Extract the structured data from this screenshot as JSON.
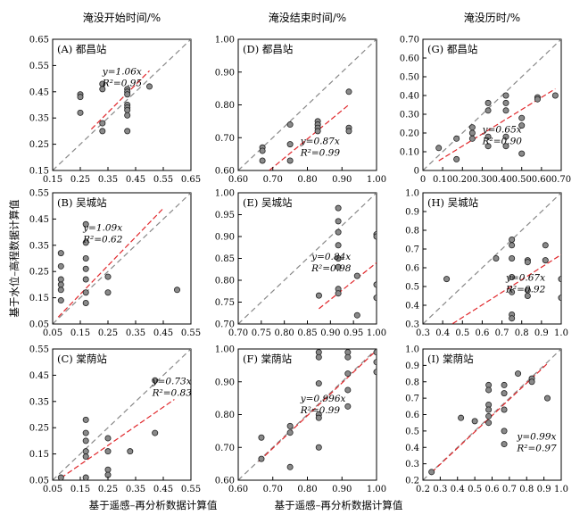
{
  "column_titles": [
    "淹没开始时间/%",
    "淹没结束时间/%",
    "淹没历时/%"
  ],
  "xlabel": "基于遥感–再分析数据计算值",
  "ylabel": "基于水位–高程数据计算值",
  "chart_data": [
    {
      "type": "scatter",
      "panel": "(A) 都昌站",
      "eq": "y=1.06x",
      "r2": "R²=0.95",
      "slope": 1.06,
      "xlim": [
        0.15,
        0.65
      ],
      "ylim": [
        0.15,
        0.65
      ],
      "xticks": [
        "0.15",
        "0.25",
        "0.35",
        "0.45",
        "0.55",
        "0.65"
      ],
      "yticks": [
        "0.15",
        "0.25",
        "0.35",
        "0.45",
        "0.55",
        "0.65"
      ],
      "points": [
        [
          0.25,
          0.44
        ],
        [
          0.25,
          0.43
        ],
        [
          0.25,
          0.37
        ],
        [
          0.33,
          0.48
        ],
        [
          0.33,
          0.46
        ],
        [
          0.33,
          0.33
        ],
        [
          0.33,
          0.3
        ],
        [
          0.42,
          0.46
        ],
        [
          0.42,
          0.45
        ],
        [
          0.42,
          0.44
        ],
        [
          0.42,
          0.4
        ],
        [
          0.42,
          0.39
        ],
        [
          0.42,
          0.38
        ],
        [
          0.42,
          0.36
        ],
        [
          0.42,
          0.3
        ],
        [
          0.5,
          0.47
        ]
      ],
      "fit_x": [
        0.29,
        0.5
      ]
    },
    {
      "type": "scatter",
      "panel": "(D) 都昌站",
      "eq": "y=0.87x",
      "r2": "R²=0.99",
      "slope": 0.87,
      "xlim": [
        0.6,
        1.0
      ],
      "ylim": [
        0.6,
        1.0
      ],
      "xticks": [
        "0.60",
        "0.70",
        "0.80",
        "0.90",
        "1.00"
      ],
      "yticks": [
        "0.60",
        "0.70",
        "0.80",
        "0.90",
        "1.00"
      ],
      "points": [
        [
          0.67,
          0.67
        ],
        [
          0.67,
          0.66
        ],
        [
          0.67,
          0.63
        ],
        [
          0.75,
          0.74
        ],
        [
          0.75,
          0.68
        ],
        [
          0.75,
          0.63
        ],
        [
          0.83,
          0.75
        ],
        [
          0.83,
          0.74
        ],
        [
          0.83,
          0.73
        ],
        [
          0.83,
          0.72
        ],
        [
          0.92,
          0.84
        ],
        [
          0.92,
          0.73
        ],
        [
          0.92,
          0.72
        ]
      ],
      "fit_x": [
        0.69,
        0.92
      ]
    },
    {
      "type": "scatter",
      "panel": "(G) 都昌站",
      "eq": "y=0.65x",
      "r2": "R²=0.90",
      "slope": 0.65,
      "xlim": [
        0.0,
        0.7
      ],
      "ylim": [
        0.0,
        0.7
      ],
      "xticks": [
        "0",
        "0.10",
        "0.20",
        "0.30",
        "0.40",
        "0.50",
        "0.60",
        "0.70"
      ],
      "yticks": [
        "0",
        "0.10",
        "0.20",
        "0.30",
        "0.40",
        "0.50",
        "0.60",
        "0.70"
      ],
      "points": [
        [
          0.08,
          0.12
        ],
        [
          0.17,
          0.17
        ],
        [
          0.17,
          0.06
        ],
        [
          0.25,
          0.23
        ],
        [
          0.25,
          0.2
        ],
        [
          0.25,
          0.17
        ],
        [
          0.33,
          0.36
        ],
        [
          0.33,
          0.32
        ],
        [
          0.33,
          0.18
        ],
        [
          0.33,
          0.13
        ],
        [
          0.42,
          0.4
        ],
        [
          0.42,
          0.36
        ],
        [
          0.42,
          0.32
        ],
        [
          0.42,
          0.18
        ],
        [
          0.42,
          0.13
        ],
        [
          0.5,
          0.28
        ],
        [
          0.5,
          0.24
        ],
        [
          0.5,
          0.09
        ],
        [
          0.58,
          0.39
        ],
        [
          0.58,
          0.38
        ],
        [
          0.67,
          0.4
        ]
      ],
      "fit_x": [
        0.08,
        0.67
      ]
    },
    {
      "type": "scatter",
      "panel": "(B) 吴城站",
      "eq": "y=1.09x",
      "r2": "R²=0.62",
      "slope": 1.09,
      "xlim": [
        0.05,
        0.55
      ],
      "ylim": [
        0.05,
        0.55
      ],
      "xticks": [
        "0.05",
        "0.15",
        "0.25",
        "0.35",
        "0.45",
        "0.55"
      ],
      "yticks": [
        "0.05",
        "0.15",
        "0.25",
        "0.35",
        "0.45",
        "0.55"
      ],
      "points": [
        [
          0.08,
          0.32
        ],
        [
          0.08,
          0.27
        ],
        [
          0.08,
          0.22
        ],
        [
          0.08,
          0.2
        ],
        [
          0.08,
          0.18
        ],
        [
          0.08,
          0.14
        ],
        [
          0.17,
          0.43
        ],
        [
          0.17,
          0.36
        ],
        [
          0.17,
          0.3
        ],
        [
          0.17,
          0.26
        ],
        [
          0.17,
          0.22
        ],
        [
          0.17,
          0.17
        ],
        [
          0.17,
          0.13
        ],
        [
          0.25,
          0.23
        ],
        [
          0.25,
          0.17
        ],
        [
          0.5,
          0.18
        ]
      ],
      "fit_x": [
        0.07,
        0.45
      ]
    },
    {
      "type": "scatter",
      "panel": "(E) 吴城站",
      "eq": "y=0.84x",
      "r2": "R²=0.98",
      "slope": 0.84,
      "xlim": [
        0.7,
        1.0
      ],
      "ylim": [
        0.7,
        1.0
      ],
      "xticks": [
        "0.70",
        "0.75",
        "0.80",
        "0.85",
        "0.90",
        "0.95",
        "1.00"
      ],
      "yticks": [
        "0.70",
        "0.75",
        "0.80",
        "0.85",
        "0.90",
        "0.95",
        "1.00"
      ],
      "points": [
        [
          0.875,
          0.765
        ],
        [
          0.917,
          0.965
        ],
        [
          0.917,
          0.935
        ],
        [
          0.917,
          0.91
        ],
        [
          0.917,
          0.88
        ],
        [
          0.917,
          0.85
        ],
        [
          0.917,
          0.83
        ],
        [
          0.917,
          0.78
        ],
        [
          0.917,
          0.77
        ],
        [
          0.958,
          0.81
        ],
        [
          0.958,
          0.72
        ],
        [
          1.0,
          0.905
        ],
        [
          1.0,
          0.9
        ],
        [
          1.0,
          0.79
        ],
        [
          1.0,
          0.76
        ]
      ],
      "fit_x": [
        0.875,
        1.0
      ]
    },
    {
      "type": "scatter",
      "panel": "(H) 吴城站",
      "eq": "y=0.67x",
      "r2": "R²=0.92",
      "slope": 0.67,
      "xlim": [
        0.3,
        1.0
      ],
      "ylim": [
        0.3,
        1.0
      ],
      "xticks": [
        "0.3",
        "0.4",
        "0.5",
        "0.6",
        "0.7",
        "0.8",
        "0.9",
        "1.0"
      ],
      "yticks": [
        "0.3",
        "0.4",
        "0.5",
        "0.6",
        "0.7",
        "0.8",
        "0.9",
        "1.0"
      ],
      "points": [
        [
          0.42,
          0.54
        ],
        [
          0.67,
          0.65
        ],
        [
          0.75,
          0.75
        ],
        [
          0.75,
          0.72
        ],
        [
          0.75,
          0.65
        ],
        [
          0.75,
          0.55
        ],
        [
          0.75,
          0.47
        ],
        [
          0.75,
          0.35
        ],
        [
          0.75,
          0.33
        ],
        [
          0.83,
          0.64
        ],
        [
          0.83,
          0.63
        ],
        [
          0.83,
          0.48
        ],
        [
          0.83,
          0.45
        ],
        [
          0.92,
          0.72
        ],
        [
          0.92,
          0.64
        ],
        [
          1.0,
          0.54
        ],
        [
          1.0,
          0.44
        ]
      ],
      "fit_x": [
        0.45,
        1.0
      ]
    },
    {
      "type": "scatter",
      "panel": "(C) 棠荫站",
      "eq": "y=0.73x",
      "r2": "R²=0.83",
      "slope": 0.73,
      "xlim": [
        0.05,
        0.55
      ],
      "ylim": [
        0.05,
        0.55
      ],
      "xticks": [
        "0.05",
        "0.15",
        "0.25",
        "0.35",
        "0.45",
        "0.55"
      ],
      "yticks": [
        "0.05",
        "0.15",
        "0.25",
        "0.35",
        "0.45",
        "0.55"
      ],
      "points": [
        [
          0.08,
          0.06
        ],
        [
          0.17,
          0.28
        ],
        [
          0.17,
          0.23
        ],
        [
          0.17,
          0.2
        ],
        [
          0.17,
          0.16
        ],
        [
          0.17,
          0.14
        ],
        [
          0.17,
          0.06
        ],
        [
          0.25,
          0.21
        ],
        [
          0.25,
          0.16
        ],
        [
          0.25,
          0.09
        ],
        [
          0.25,
          0.07
        ],
        [
          0.33,
          0.16
        ],
        [
          0.42,
          0.43
        ],
        [
          0.42,
          0.23
        ]
      ],
      "fit_x": [
        0.08,
        0.49
      ]
    },
    {
      "type": "scatter",
      "panel": "(F) 棠荫站",
      "eq": "y=0.996x",
      "r2": "R²=0.99",
      "slope": 0.996,
      "xlim": [
        0.6,
        1.0
      ],
      "ylim": [
        0.6,
        1.0
      ],
      "xticks": [
        "0.60",
        "0.70",
        "0.80",
        "0.90",
        "1.00"
      ],
      "yticks": [
        "0.60",
        "0.70",
        "0.80",
        "0.90",
        "1.00"
      ],
      "points": [
        [
          0.667,
          0.73
        ],
        [
          0.667,
          0.665
        ],
        [
          0.75,
          0.765
        ],
        [
          0.75,
          0.745
        ],
        [
          0.75,
          0.64
        ],
        [
          0.833,
          0.99
        ],
        [
          0.833,
          0.975
        ],
        [
          0.833,
          0.895
        ],
        [
          0.833,
          0.8
        ],
        [
          0.833,
          0.79
        ],
        [
          0.833,
          0.7
        ],
        [
          0.917,
          0.99
        ],
        [
          0.917,
          0.975
        ],
        [
          0.917,
          0.925
        ],
        [
          0.917,
          0.875
        ],
        [
          0.917,
          0.825
        ],
        [
          1.0,
          0.99
        ],
        [
          1.0,
          0.96
        ],
        [
          1.0,
          0.93
        ]
      ],
      "fit_x": [
        0.66,
        1.0
      ]
    },
    {
      "type": "scatter",
      "panel": "(I) 棠荫站",
      "eq": "y=0.99x",
      "r2": "R²=0.97",
      "slope": 0.99,
      "xlim": [
        0.2,
        1.0
      ],
      "ylim": [
        0.2,
        1.0
      ],
      "xticks": [
        "0.2",
        "0.3",
        "0.4",
        "0.5",
        "0.6",
        "0.7",
        "0.8",
        "0.9",
        "1.0"
      ],
      "yticks": [
        "0.2",
        "0.3",
        "0.4",
        "0.5",
        "0.6",
        "0.7",
        "0.8",
        "0.9",
        "1.0"
      ],
      "points": [
        [
          0.25,
          0.25
        ],
        [
          0.42,
          0.58
        ],
        [
          0.5,
          0.56
        ],
        [
          0.58,
          0.78
        ],
        [
          0.58,
          0.75
        ],
        [
          0.58,
          0.66
        ],
        [
          0.58,
          0.63
        ],
        [
          0.58,
          0.59
        ],
        [
          0.58,
          0.55
        ],
        [
          0.67,
          0.78
        ],
        [
          0.67,
          0.73
        ],
        [
          0.67,
          0.63
        ],
        [
          0.67,
          0.5
        ],
        [
          0.67,
          0.42
        ],
        [
          0.75,
          0.85
        ],
        [
          0.83,
          0.82
        ],
        [
          0.83,
          0.8
        ],
        [
          0.92,
          0.7
        ]
      ],
      "fit_x": [
        0.25,
        0.92
      ]
    }
  ]
}
